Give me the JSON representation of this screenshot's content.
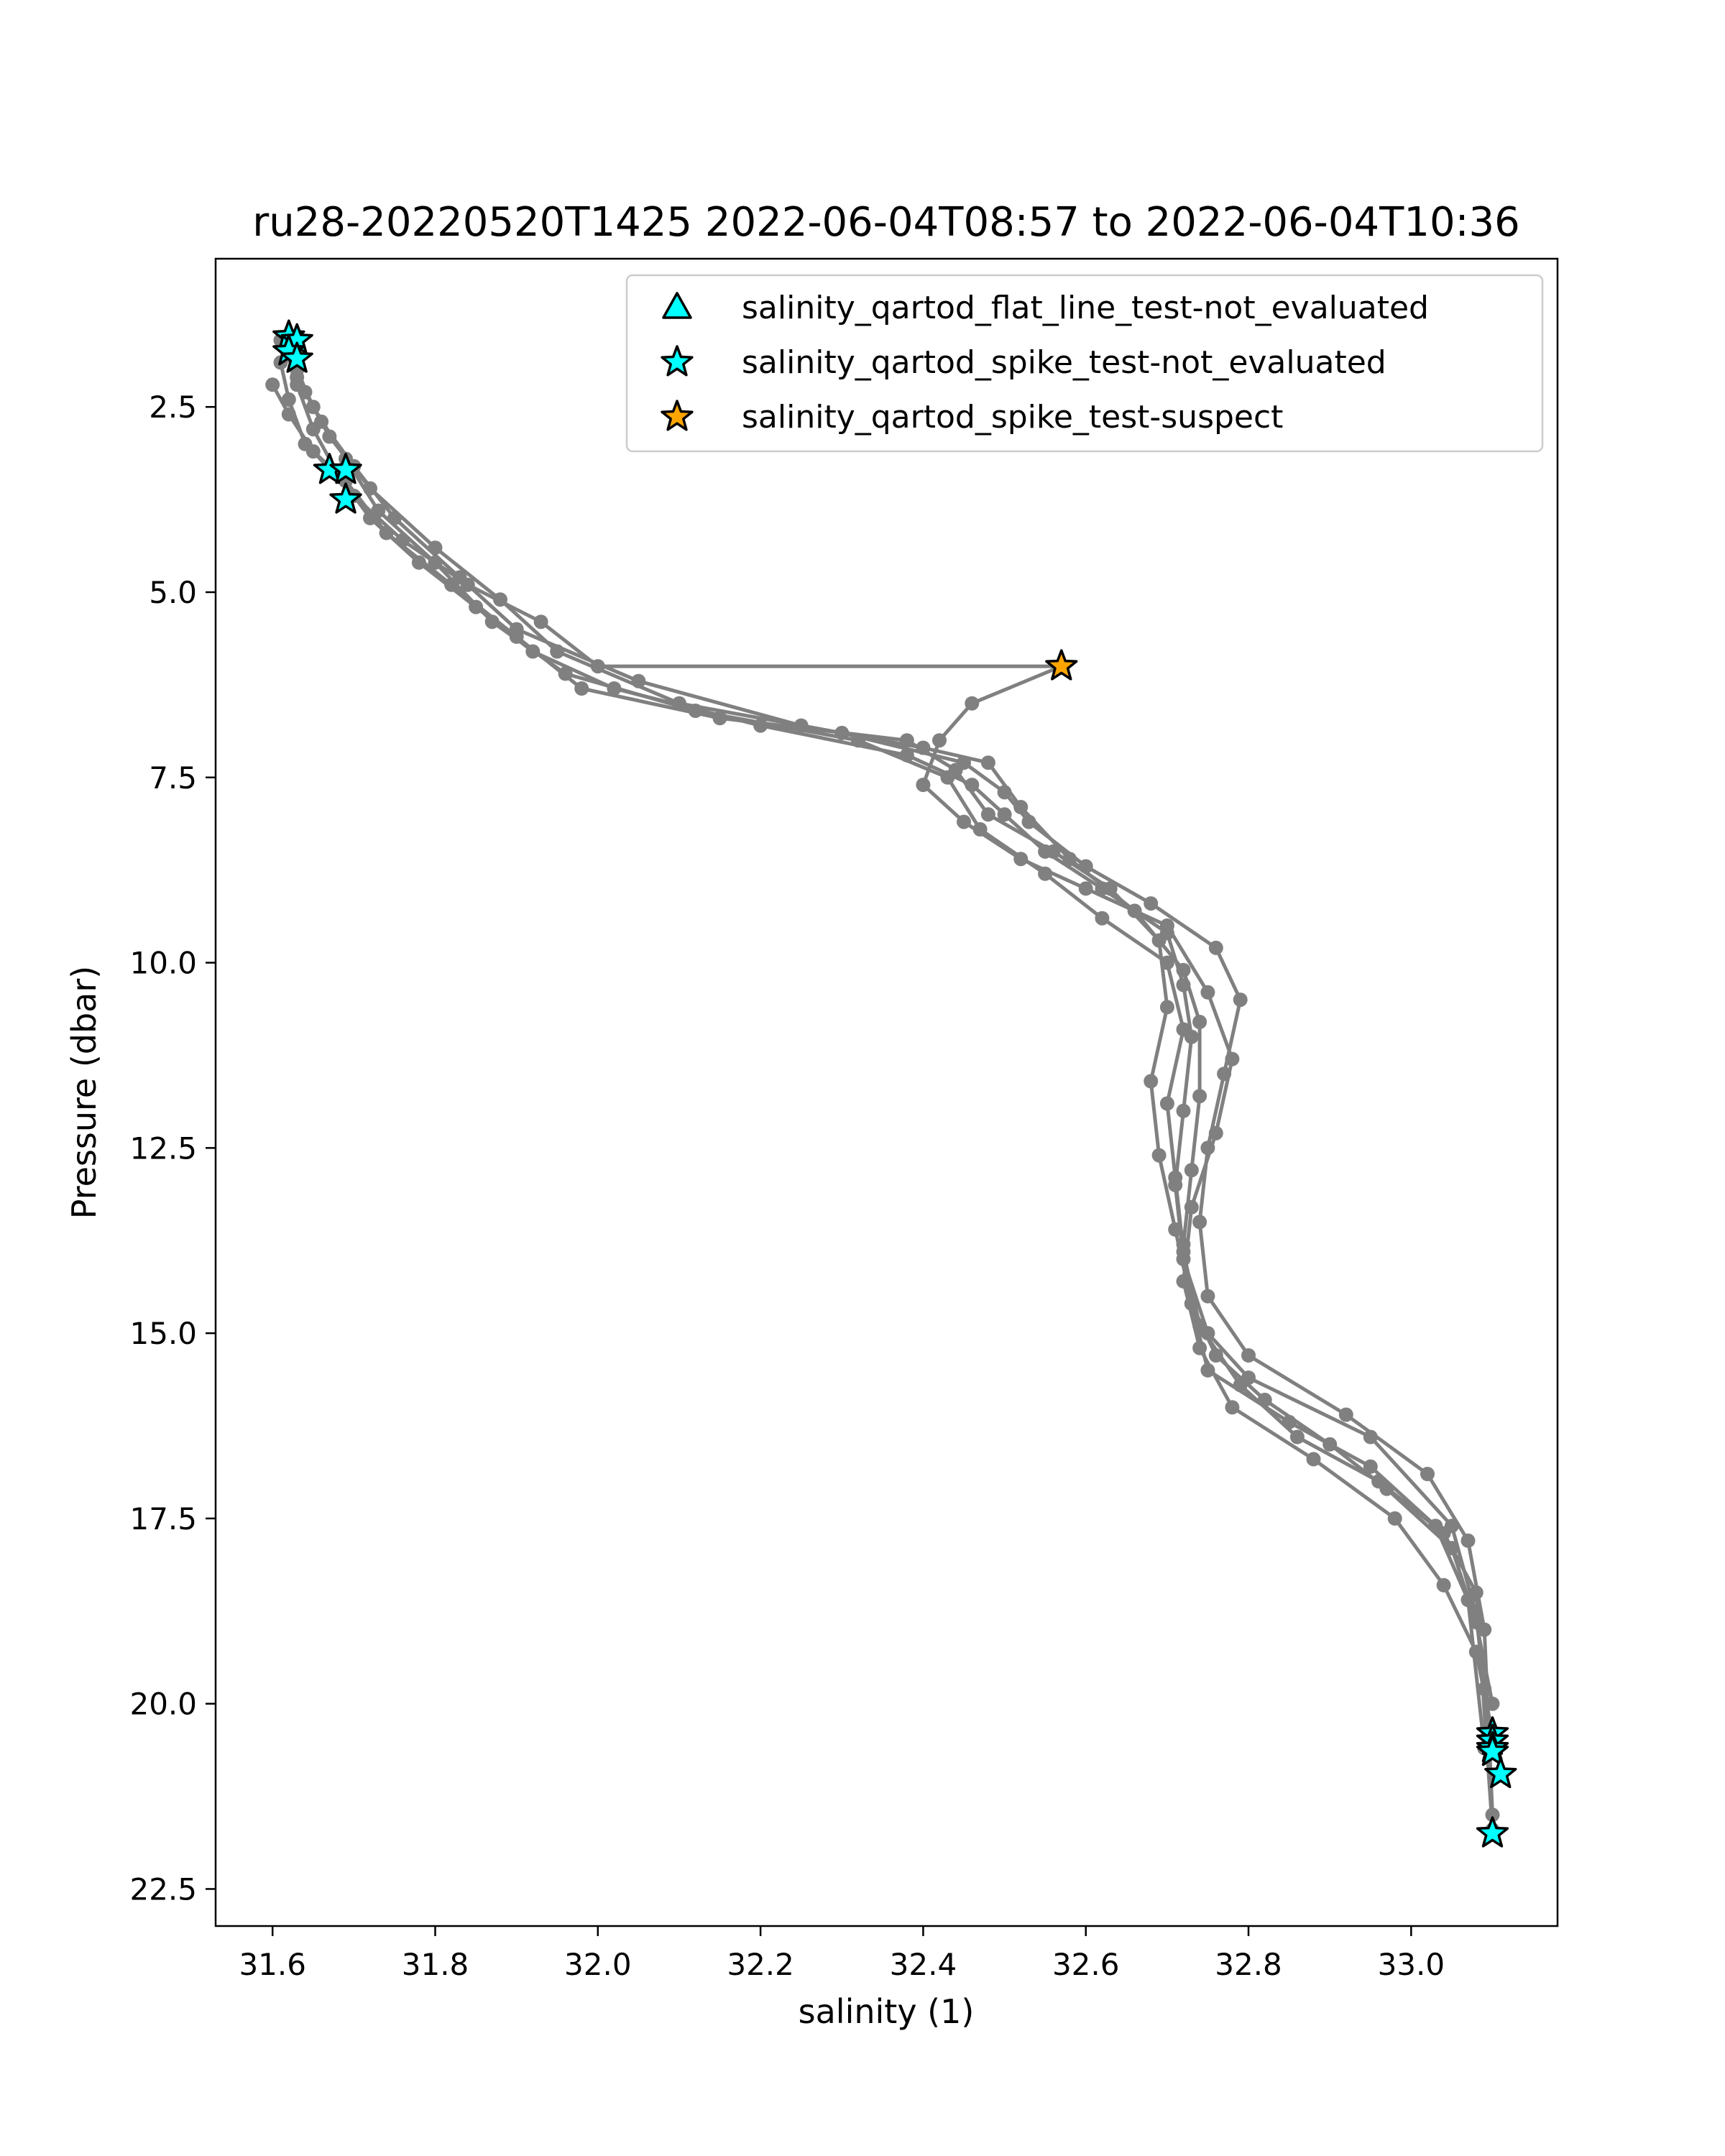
{
  "chart_data": {
    "type": "scatter",
    "title": "ru28-20220520T1425 2022-06-04T08:57 to 2022-06-04T10:36",
    "xlabel": "salinity (1)",
    "ylabel": "Pressure (dbar)",
    "xlim": [
      31.53,
      33.18
    ],
    "ylim": [
      23.0,
      0.5
    ],
    "y_inverted": true,
    "xticks": [
      31.6,
      31.8,
      32.0,
      32.2,
      32.4,
      32.6,
      32.8,
      33.0
    ],
    "xtick_labels": [
      "31.6",
      "31.8",
      "32.0",
      "32.2",
      "32.4",
      "32.6",
      "32.8",
      "33.0"
    ],
    "yticks": [
      2.5,
      5.0,
      7.5,
      10.0,
      12.5,
      15.0,
      17.5,
      20.0,
      22.5
    ],
    "ytick_labels": [
      "2.5",
      "5.0",
      "7.5",
      "10.0",
      "12.5",
      "15.0",
      "17.5",
      "20.0",
      "22.5"
    ],
    "grid": false,
    "legend_position": "upper right",
    "profile_color": "#808080",
    "profiles": [
      {
        "x": [
          31.62,
          31.63,
          31.65,
          31.68,
          31.72,
          31.78,
          31.85,
          31.92,
          32.02,
          32.2,
          32.38,
          32.46,
          32.5,
          32.55,
          32.62,
          32.7,
          32.72,
          32.73,
          32.72,
          32.71,
          32.72,
          32.75,
          32.8,
          32.95,
          33.05,
          33.08,
          33.09,
          33.1
        ],
        "y": [
          1.7,
          2.2,
          2.8,
          3.4,
          4.0,
          4.6,
          5.2,
          5.8,
          6.3,
          6.8,
          7.2,
          7.6,
          8.0,
          8.5,
          9.0,
          9.6,
          10.3,
          11.0,
          12.0,
          13.0,
          14.0,
          15.0,
          15.6,
          16.4,
          17.6,
          18.8,
          19.8,
          20.6
        ]
      },
      {
        "x": [
          31.61,
          31.63,
          31.66,
          31.7,
          31.75,
          31.83,
          31.9,
          32.05,
          32.25,
          32.4,
          32.48,
          32.52,
          32.58,
          32.66,
          32.72,
          32.74,
          32.74,
          32.73,
          32.72,
          32.73,
          32.76,
          32.82,
          32.9,
          32.97,
          33.05,
          33.08,
          33.1
        ],
        "y": [
          1.6,
          2.1,
          2.7,
          3.3,
          4.0,
          4.8,
          5.5,
          6.2,
          6.8,
          7.1,
          7.3,
          7.9,
          8.6,
          9.3,
          10.1,
          10.8,
          11.8,
          12.8,
          13.8,
          14.6,
          15.3,
          15.9,
          16.5,
          17.1,
          17.9,
          18.9,
          20.0
        ]
      },
      {
        "x": [
          31.62,
          31.64,
          31.67,
          31.72,
          31.8,
          31.88,
          31.95,
          32.1,
          32.3,
          32.45,
          32.5,
          32.53,
          32.6,
          32.68,
          32.76,
          32.79,
          32.77,
          32.75,
          32.74,
          32.75,
          32.8,
          32.92,
          33.02,
          33.07,
          33.09,
          33.1
        ],
        "y": [
          1.8,
          2.3,
          2.9,
          3.6,
          4.4,
          5.1,
          5.8,
          6.5,
          6.9,
          7.3,
          7.7,
          8.1,
          8.7,
          9.2,
          9.8,
          10.5,
          11.5,
          12.5,
          13.5,
          14.5,
          15.3,
          16.1,
          16.9,
          17.8,
          19.0,
          21.5
        ]
      },
      {
        "x": [
          31.6,
          31.62,
          31.65,
          31.7,
          31.76,
          31.84,
          31.93,
          32.0,
          32.57,
          32.46,
          32.42,
          32.4,
          32.45,
          32.52,
          32.6,
          32.7,
          32.75,
          32.78,
          32.76,
          32.73,
          32.72,
          32.74,
          32.78,
          32.88,
          32.98,
          33.04,
          33.08,
          33.1
        ],
        "y": [
          2.2,
          2.6,
          3.1,
          3.7,
          4.3,
          4.9,
          5.4,
          6.0,
          6.0,
          6.5,
          7.0,
          7.6,
          8.1,
          8.6,
          9.0,
          9.5,
          10.4,
          11.3,
          12.3,
          13.3,
          14.3,
          15.2,
          16.0,
          16.7,
          17.5,
          18.4,
          19.3,
          20.4
        ]
      },
      {
        "x": [
          31.61,
          31.62,
          31.64,
          31.69,
          31.74,
          31.82,
          31.9,
          31.98,
          32.15,
          32.38,
          32.44,
          32.48,
          32.56,
          32.63,
          32.69,
          32.7,
          32.68,
          32.69,
          32.71,
          32.73,
          32.75,
          32.85,
          32.95,
          33.03,
          33.07,
          33.09
        ],
        "y": [
          1.9,
          2.4,
          3.0,
          3.5,
          4.2,
          4.9,
          5.6,
          6.3,
          6.7,
          7.0,
          7.4,
          8.0,
          8.5,
          9.0,
          9.7,
          10.6,
          11.6,
          12.6,
          13.6,
          14.6,
          15.5,
          16.2,
          16.8,
          17.6,
          18.6,
          20.6
        ]
      },
      {
        "x": [
          31.63,
          31.65,
          31.69,
          31.73,
          31.8,
          31.87,
          31.96,
          32.12,
          32.32,
          32.43,
          32.47,
          32.55,
          32.62,
          32.7,
          32.72,
          32.7,
          32.71,
          32.72,
          32.74,
          32.79,
          32.86,
          32.96,
          33.04,
          33.08,
          33.1
        ],
        "y": [
          2.0,
          2.5,
          3.2,
          3.9,
          4.6,
          5.4,
          6.1,
          6.6,
          7.0,
          7.5,
          8.2,
          8.8,
          9.4,
          10.0,
          10.9,
          11.9,
          12.9,
          13.9,
          14.9,
          15.7,
          16.4,
          17.0,
          17.7,
          18.5,
          21.7
        ]
      }
    ],
    "series": [
      {
        "name": "salinity_qartod_flat_line_test-not_evaluated",
        "marker": "triangle",
        "color": "#00ffff",
        "x": [],
        "y": []
      },
      {
        "name": "salinity_qartod_spike_test-not_evaluated",
        "marker": "star",
        "color": "#00ffff",
        "x": [
          31.62,
          31.63,
          31.62,
          31.63,
          31.67,
          31.69,
          31.69,
          33.1,
          33.1,
          33.1,
          33.1,
          33.11,
          33.1
        ],
        "y": [
          1.55,
          1.6,
          1.75,
          1.85,
          3.35,
          3.35,
          3.75,
          20.4,
          20.5,
          20.6,
          20.65,
          20.95,
          21.75
        ]
      },
      {
        "name": "salinity_qartod_spike_test-suspect",
        "marker": "star",
        "color": "#ffa500",
        "x": [
          32.57
        ],
        "y": [
          6.0
        ]
      }
    ]
  }
}
